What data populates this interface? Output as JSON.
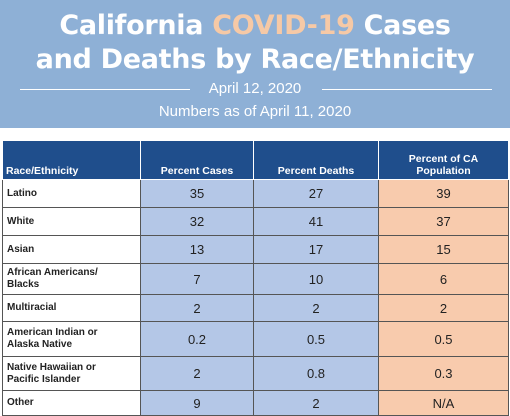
{
  "header": {
    "title_line1": [
      "California",
      "COVID-19",
      "Cases"
    ],
    "title_line2": "and Deaths by Race/Ethnicity",
    "date": "April 12, 2020",
    "subtitle": "Numbers as of April 11, 2020"
  },
  "table": {
    "columns": [
      "Race/Ethnicity",
      "Percent Cases",
      "Percent Deaths",
      "Percent of CA Population"
    ],
    "rows": [
      [
        "Latino",
        35,
        27,
        39
      ],
      [
        "White",
        32,
        41,
        37
      ],
      [
        "Asian",
        13,
        17,
        15
      ],
      [
        "African Americans/ Blacks",
        7,
        10,
        6
      ],
      [
        "Multiracial",
        2,
        2,
        2
      ],
      [
        "American Indian or Alaska Native",
        0.2,
        0.5,
        0.5
      ],
      [
        "Native Hawaiian or Pacific Islander",
        2,
        0.8,
        0.3
      ],
      [
        "Other",
        9,
        2,
        "N/A"
      ]
    ]
  }
}
